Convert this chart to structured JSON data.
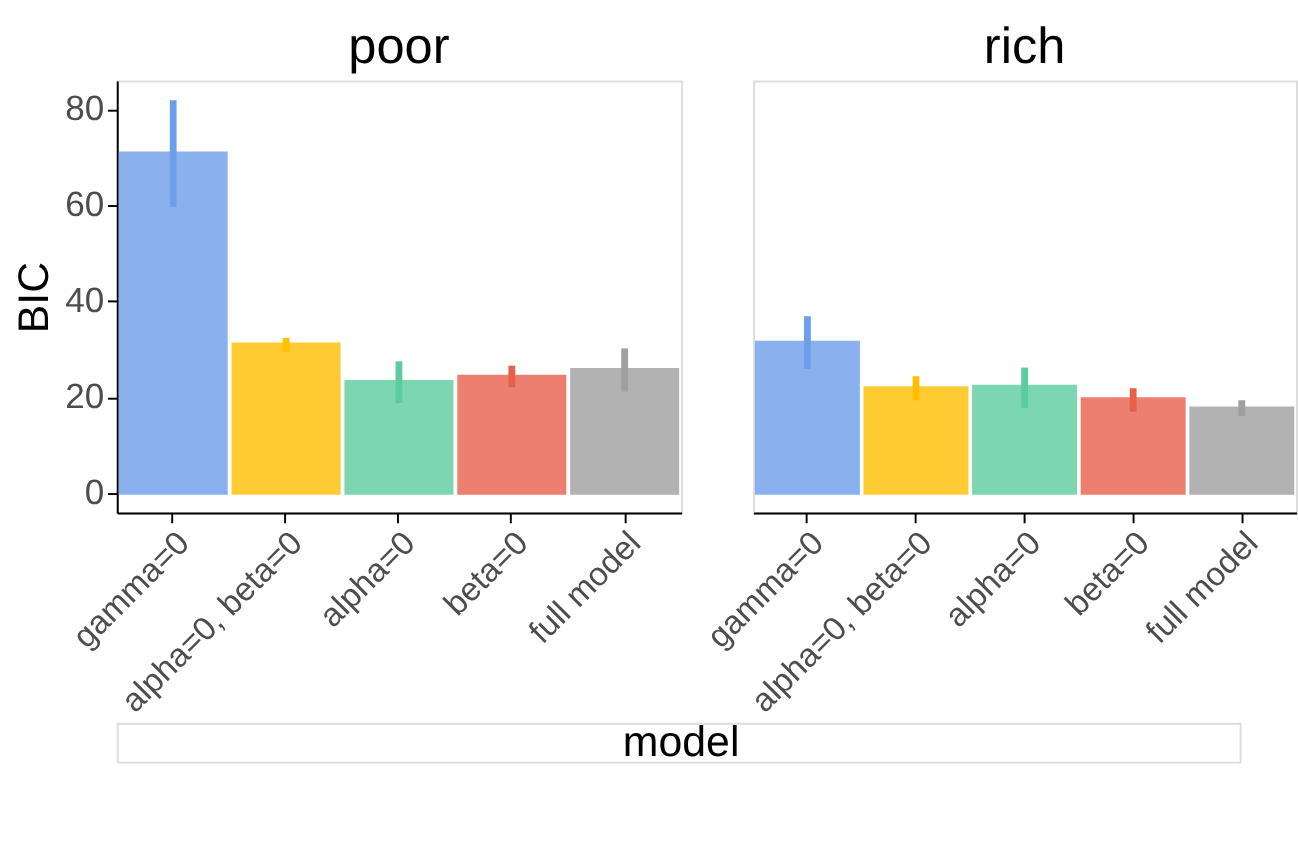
{
  "chart_data": [
    {
      "type": "bar",
      "title": "poor",
      "xlabel": "model",
      "ylabel": "BIC",
      "categories": [
        "gamma=0",
        "alpha=0, beta=0",
        "alpha=0",
        "beta=0",
        "full model"
      ],
      "values": [
        70.9,
        31.1,
        23.3,
        24.4,
        25.8
      ],
      "errors": [
        [
          59.7,
          81.9
        ],
        [
          29.5,
          32.4
        ],
        [
          18.8,
          27.5
        ],
        [
          22.1,
          26.6
        ],
        [
          21.2,
          30.2
        ]
      ],
      "colors": [
        "#6d9eeb",
        "#ffbf00",
        "#5ccca0",
        "#e8604c",
        "#a0a0a0"
      ],
      "ylim": [
        -4,
        86
      ],
      "yticks": [
        0,
        20,
        40,
        60,
        80
      ],
      "grid": false,
      "legend": false
    },
    {
      "type": "bar",
      "title": "rich",
      "categories": [
        "gamma=0",
        "alpha=0, beta=0",
        "alpha=0",
        "beta=0",
        "full model"
      ],
      "values": [
        31.5,
        22.0,
        22.3,
        19.7,
        17.8
      ],
      "errors": [
        [
          25.9,
          36.9
        ],
        [
          19.4,
          24.4
        ],
        [
          17.8,
          26.2
        ],
        [
          17.0,
          21.9
        ],
        [
          16.1,
          19.4
        ]
      ],
      "colors": [
        "#6d9eeb",
        "#ffbf00",
        "#5ccca0",
        "#e8604c",
        "#a0a0a0"
      ],
      "ylim": [
        -4,
        86
      ],
      "yticks": [
        0,
        20,
        40,
        60,
        80
      ],
      "grid": false,
      "legend": false,
      "tick_labels": "x"
    }
  ]
}
